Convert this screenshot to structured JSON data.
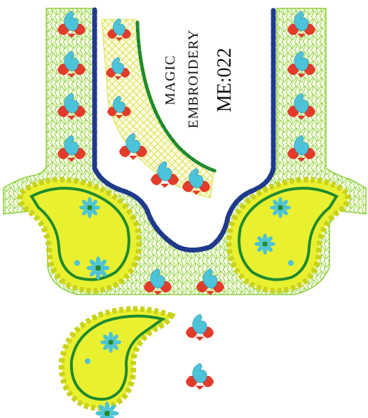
{
  "design": {
    "brand_line1": "MAGIC",
    "brand_line2": "EMBROIDERY",
    "code": "ME:022"
  },
  "colors": {
    "mesh": "#8ccf3c",
    "mesh_fill": "#f4fbe4",
    "yellow": "#e9f030",
    "yellow_dark": "#c9d21a",
    "green": "#1f8a2e",
    "navy": "#1f3a8c",
    "red": "#e23b2a",
    "cyan": "#4cc3d9",
    "white": "#ffffff"
  }
}
